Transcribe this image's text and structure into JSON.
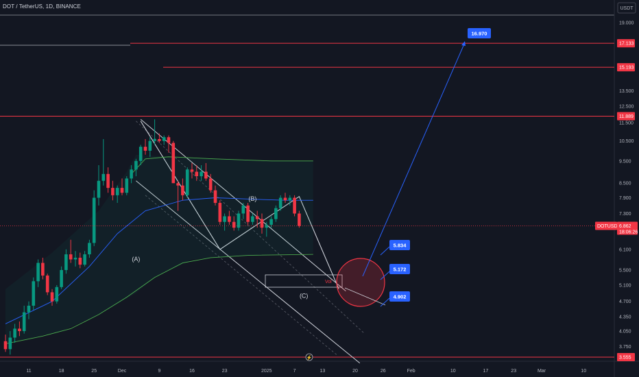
{
  "header": {
    "title": "DOT / TetherUS, 1D, BINANCE",
    "currency": "USDT"
  },
  "colors": {
    "background": "#131722",
    "up": "#089981",
    "down": "#f23645",
    "resistance": "#f23645",
    "callout": "#2962ff"
  },
  "chart_data": {
    "type": "candlestick",
    "symbol": "DOTUSDT",
    "price_scale": "log",
    "ylim": [
      3.45,
      20.5
    ],
    "y_ticks": [
      "19.000",
      "17.133",
      "15.193",
      "13.500",
      "12.500",
      "11.889",
      "11.500",
      "10.500",
      "9.500",
      "8.500",
      "7.900",
      "7.300",
      "6.862",
      "6.100",
      "5.500",
      "5.100",
      "4.700",
      "4.350",
      "4.050",
      "3.750",
      "3.555"
    ],
    "x_ticks": [
      {
        "label": "11",
        "day": 0
      },
      {
        "label": "18",
        "day": 7
      },
      {
        "label": "25",
        "day": 14
      },
      {
        "label": "Dec",
        "day": 20
      },
      {
        "label": "9",
        "day": 28
      },
      {
        "label": "16",
        "day": 35
      },
      {
        "label": "23",
        "day": 42
      },
      {
        "label": "2025",
        "day": 51
      },
      {
        "label": "7",
        "day": 57
      },
      {
        "label": "13",
        "day": 63
      },
      {
        "label": "20",
        "day": 70
      },
      {
        "label": "26",
        "day": 76
      },
      {
        "label": "Feb",
        "day": 82
      },
      {
        "label": "10",
        "day": 91
      },
      {
        "label": "17",
        "day": 98
      },
      {
        "label": "23",
        "day": 104
      },
      {
        "label": "Mar",
        "day": 110
      },
      {
        "label": "10",
        "day": 119
      }
    ],
    "candles": [
      [
        3.85,
        3.98,
        3.65,
        3.7
      ],
      [
        3.7,
        4.05,
        3.6,
        3.92
      ],
      [
        3.92,
        4.2,
        3.82,
        4.1
      ],
      [
        4.1,
        4.25,
        3.95,
        4.05
      ],
      [
        4.05,
        4.6,
        4.0,
        4.45
      ],
      [
        4.45,
        4.7,
        4.3,
        4.6
      ],
      [
        4.6,
        5.3,
        4.5,
        5.2
      ],
      [
        5.2,
        5.8,
        5.05,
        5.7
      ],
      [
        5.7,
        5.85,
        5.25,
        5.35
      ],
      [
        5.35,
        5.4,
        4.85,
        4.92
      ],
      [
        4.92,
        5.0,
        4.6,
        4.7
      ],
      [
        4.7,
        5.1,
        4.65,
        5.05
      ],
      [
        5.05,
        5.6,
        5.0,
        5.5
      ],
      [
        5.5,
        6.1,
        5.4,
        5.95
      ],
      [
        5.95,
        6.4,
        5.7,
        5.8
      ],
      [
        5.8,
        6.05,
        5.6,
        5.85
      ],
      [
        5.85,
        6.0,
        5.55,
        5.65
      ],
      [
        5.65,
        6.05,
        5.6,
        5.95
      ],
      [
        5.95,
        6.4,
        5.85,
        6.3
      ],
      [
        6.3,
        8.2,
        6.2,
        7.9
      ],
      [
        7.9,
        9.3,
        7.6,
        8.6
      ],
      [
        8.6,
        10.6,
        8.4,
        8.9
      ],
      [
        8.9,
        9.2,
        8.1,
        8.3
      ],
      [
        8.3,
        8.6,
        7.8,
        8.0
      ],
      [
        8.0,
        8.4,
        7.7,
        8.3
      ],
      [
        8.3,
        8.7,
        8.0,
        8.1
      ],
      [
        8.1,
        8.8,
        8.0,
        8.7
      ],
      [
        8.7,
        9.3,
        8.5,
        9.1
      ],
      [
        9.1,
        9.6,
        8.8,
        9.5
      ],
      [
        9.5,
        10.3,
        9.3,
        10.2
      ],
      [
        10.2,
        10.6,
        9.8,
        10.0
      ],
      [
        10.0,
        10.7,
        9.7,
        10.5
      ],
      [
        10.5,
        11.7,
        10.3,
        10.6
      ],
      [
        10.6,
        10.9,
        10.4,
        10.5
      ],
      [
        10.5,
        10.8,
        10.3,
        10.7
      ],
      [
        10.7,
        10.8,
        9.9,
        10.4
      ],
      [
        10.4,
        10.5,
        8.5,
        8.5
      ],
      [
        8.5,
        8.6,
        7.4,
        8.4
      ],
      [
        8.4,
        8.7,
        7.8,
        8.0
      ],
      [
        8.0,
        9.2,
        7.9,
        9.1
      ],
      [
        9.1,
        9.4,
        8.7,
        9.0
      ],
      [
        9.0,
        9.3,
        8.6,
        8.8
      ],
      [
        8.8,
        9.3,
        8.6,
        9.0
      ],
      [
        9.0,
        9.4,
        8.6,
        8.7
      ],
      [
        8.7,
        8.9,
        8.1,
        8.2
      ],
      [
        8.2,
        8.4,
        7.6,
        7.7
      ],
      [
        7.7,
        7.8,
        6.9,
        7.0
      ],
      [
        7.0,
        7.3,
        6.7,
        7.2
      ],
      [
        7.2,
        7.4,
        6.9,
        7.0
      ],
      [
        7.0,
        7.2,
        6.7,
        6.8
      ],
      [
        6.8,
        7.4,
        6.7,
        7.3
      ],
      [
        7.3,
        7.7,
        7.1,
        7.6
      ],
      [
        7.6,
        7.7,
        6.9,
        7.0
      ],
      [
        7.0,
        7.3,
        6.9,
        7.2
      ],
      [
        7.2,
        7.4,
        6.8,
        7.1
      ],
      [
        7.1,
        7.3,
        6.6,
        6.8
      ],
      [
        6.8,
        7.0,
        6.5,
        6.9
      ],
      [
        6.9,
        7.2,
        6.8,
        7.1
      ],
      [
        7.1,
        7.6,
        7.0,
        7.5
      ],
      [
        7.5,
        8.0,
        7.4,
        7.9
      ],
      [
        7.9,
        8.1,
        7.7,
        7.8
      ],
      [
        7.8,
        8.0,
        7.6,
        7.9
      ],
      [
        7.9,
        8.0,
        7.2,
        7.3
      ],
      [
        7.3,
        7.4,
        6.8,
        6.86
      ]
    ],
    "wave_labels": [
      {
        "label": "(A)",
        "day": 28,
        "price": 5.95
      },
      {
        "label": "(B)",
        "day": 53,
        "price": 8.05
      },
      {
        "label": "(C)",
        "day": 64,
        "price": 4.95
      }
    ],
    "volume_box_label": "Vol",
    "targets": [
      {
        "value": "16.970",
        "price": 16.97
      },
      {
        "value": "5.834",
        "price": 6.3
      },
      {
        "value": "5.172",
        "price": 5.5
      },
      {
        "value": "4.902",
        "price": 4.7
      }
    ],
    "price_lines": [
      {
        "label": "17.133",
        "price": 17.133
      },
      {
        "label": "15.193",
        "price": 15.193
      },
      {
        "label": "11.889",
        "price": 11.889
      },
      {
        "label": "3.555",
        "price": 3.555
      }
    ],
    "last_price": {
      "symbol": "DOTUSDT",
      "price": "6.862",
      "countdown": "18:06:26"
    }
  }
}
